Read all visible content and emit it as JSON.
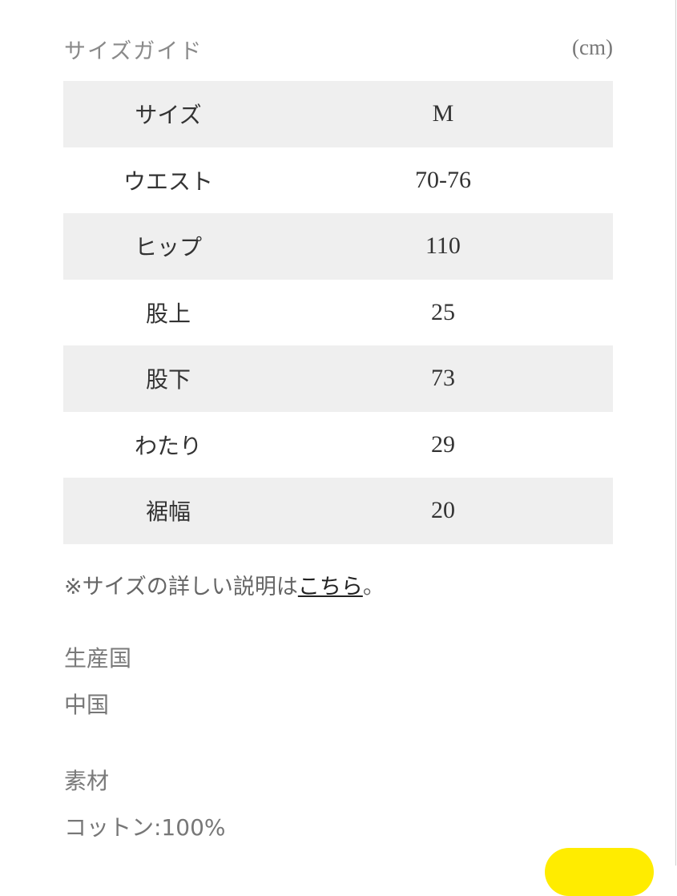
{
  "size_guide": {
    "title": "サイズガイド",
    "unit": "(cm)",
    "rows": [
      {
        "label": "サイズ",
        "value": "M"
      },
      {
        "label": "ウエスト",
        "value": "70-76"
      },
      {
        "label": "ヒップ",
        "value": "110"
      },
      {
        "label": "股上",
        "value": "25"
      },
      {
        "label": "股下",
        "value": "73"
      },
      {
        "label": "わたり",
        "value": "29"
      },
      {
        "label": "裾幅",
        "value": "20"
      }
    ],
    "note_prefix": "※サイズの詳しい説明は",
    "note_link": "こちら",
    "note_suffix": "。"
  },
  "origin": {
    "label": "生産国",
    "value": "中国"
  },
  "material": {
    "label": "素材",
    "value": "コットン:100%"
  },
  "colors": {
    "shade": "#efefef",
    "fab": "#ffec00"
  }
}
